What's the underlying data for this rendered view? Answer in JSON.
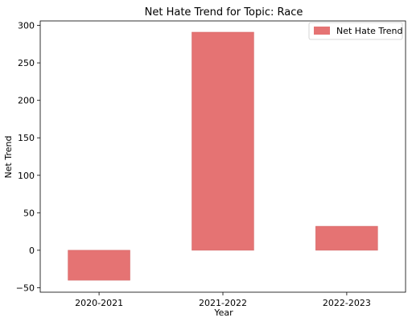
{
  "chart_data": {
    "type": "bar",
    "title": "Net Hate Trend for Topic: Race",
    "xlabel": "Year",
    "ylabel": "Net Trend",
    "categories": [
      "2020-2021",
      "2021-2022",
      "2022-2023"
    ],
    "series": [
      {
        "name": "Net Hate Trend",
        "values": [
          -40,
          291,
          32
        ],
        "color": "#e57373"
      }
    ],
    "ylim": [
      -56,
      306
    ],
    "yticks": [
      -50,
      0,
      50,
      100,
      150,
      200,
      250,
      300
    ],
    "grid": false,
    "legend_position": "top-right"
  }
}
